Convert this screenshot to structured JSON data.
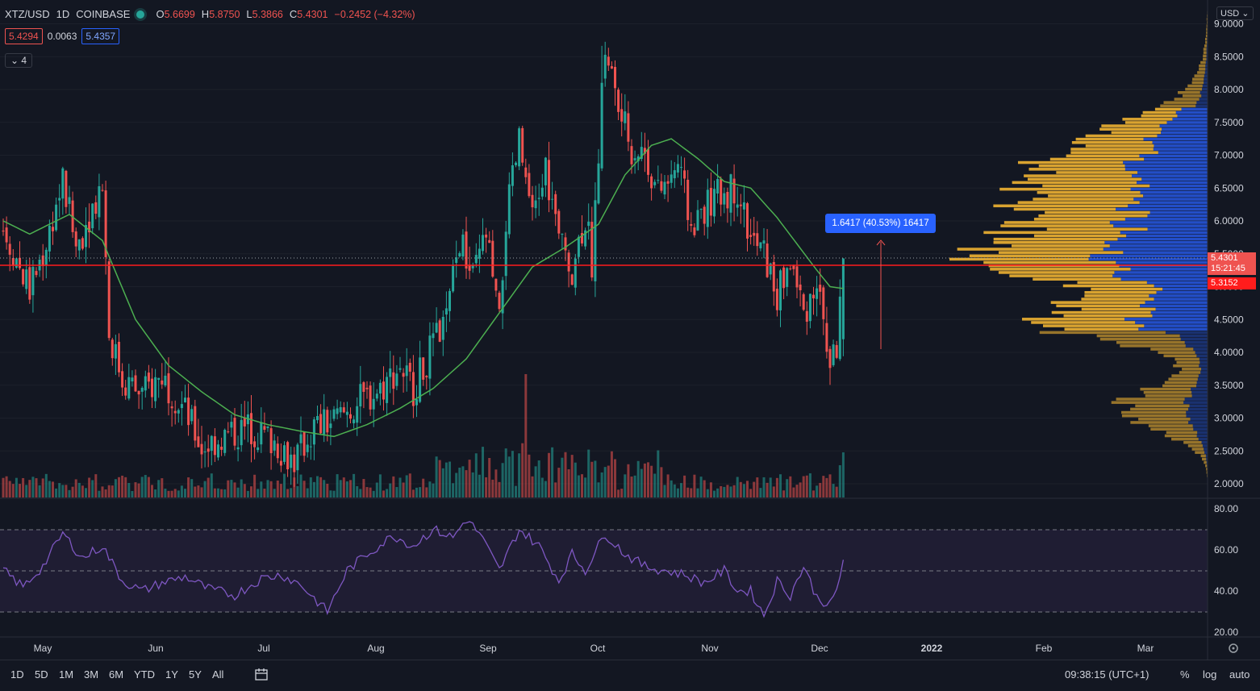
{
  "header": {
    "symbol": "XTZ/USD",
    "interval": "1D",
    "exchange": "COINBASE",
    "open_label": "O",
    "open": "5.6699",
    "high_label": "H",
    "high": "5.8750",
    "low_label": "L",
    "low": "5.3866",
    "close_label": "C",
    "close": "5.4301",
    "change": "−0.2452 (−4.32%)",
    "bid": "5.4294",
    "spread": "0.0063",
    "ask": "5.4357",
    "indicators_collapse": "⌄ 4",
    "currency": "USD ⌄"
  },
  "measure_label": "1.6417 (40.53%) 16417",
  "price_tags": {
    "last": "5.4301",
    "countdown": "15:21:45",
    "level": "5.3152"
  },
  "bottom_bar": {
    "ranges": [
      "1D",
      "5D",
      "1M",
      "3M",
      "6M",
      "YTD",
      "1Y",
      "5Y",
      "All"
    ],
    "time": "09:38:15 (UTC+1)",
    "percent": "%",
    "log": "log",
    "auto": "auto"
  },
  "colors": {
    "background": "#131722",
    "up": "#26a69a",
    "down": "#ef5350",
    "ma": "#4caf50",
    "rsi": "#7e57c2",
    "vp_value_area": "#2962ff",
    "vp_outside": "#f0b232",
    "level_line": "#ff1c1c"
  },
  "chart_data": [
    {
      "type": "candlestick",
      "title": "XTZ/USD 1D COINBASE",
      "ylim": [
        2.0,
        9.0
      ],
      "y_ticks": [
        "9.0000",
        "8.5000",
        "8.0000",
        "7.5000",
        "7.0000",
        "6.5000",
        "6.0000",
        "5.5000",
        "5.0000",
        "4.5000",
        "4.0000",
        "3.5000",
        "3.0000",
        "2.5000",
        "2.0000"
      ],
      "x_ticks": [
        "May",
        "Jun",
        "Jul",
        "Aug",
        "Sep",
        "Oct",
        "Nov",
        "Dec",
        "2022",
        "Feb",
        "Mar"
      ],
      "horizontal_level": 5.3152,
      "last_price": 5.4301,
      "close_path": [
        [
          0,
          5.9
        ],
        [
          8,
          4.95
        ],
        [
          12,
          5.5
        ],
        [
          18,
          6.6
        ],
        [
          22,
          5.6
        ],
        [
          30,
          6.6
        ],
        [
          32,
          4.3
        ],
        [
          36,
          3.6
        ],
        [
          42,
          3.35
        ],
        [
          48,
          3.65
        ],
        [
          55,
          3.1
        ],
        [
          60,
          2.55
        ],
        [
          66,
          2.7
        ],
        [
          74,
          2.85
        ],
        [
          82,
          2.65
        ],
        [
          88,
          2.35
        ],
        [
          94,
          2.85
        ],
        [
          100,
          2.95
        ],
        [
          108,
          3.25
        ],
        [
          114,
          3.45
        ],
        [
          120,
          3.8
        ],
        [
          124,
          3.45
        ],
        [
          130,
          4.1
        ],
        [
          134,
          4.5
        ],
        [
          138,
          5.7
        ],
        [
          142,
          5.1
        ],
        [
          146,
          5.8
        ],
        [
          150,
          4.4
        ],
        [
          152,
          6.0
        ],
        [
          156,
          7.2
        ],
        [
          160,
          5.95
        ],
        [
          164,
          6.8
        ],
        [
          168,
          5.7
        ],
        [
          172,
          5.3
        ],
        [
          176,
          6.1
        ],
        [
          178,
          5.4
        ],
        [
          182,
          8.7
        ],
        [
          186,
          7.7
        ],
        [
          190,
          7.1
        ],
        [
          194,
          7.05
        ],
        [
          198,
          6.4
        ],
        [
          204,
          6.85
        ],
        [
          208,
          5.9
        ],
        [
          212,
          6.2
        ],
        [
          218,
          6.45
        ],
        [
          222,
          6.5
        ],
        [
          226,
          5.7
        ],
        [
          230,
          5.5
        ],
        [
          234,
          4.85
        ],
        [
          238,
          5.4
        ],
        [
          242,
          4.6
        ],
        [
          246,
          5.1
        ],
        [
          250,
          3.8
        ],
        [
          252,
          4.1
        ],
        [
          254,
          5.43
        ]
      ],
      "ma_path": [
        [
          0,
          6.0
        ],
        [
          8,
          5.8
        ],
        [
          20,
          6.1
        ],
        [
          30,
          5.7
        ],
        [
          40,
          4.5
        ],
        [
          50,
          3.8
        ],
        [
          60,
          3.4
        ],
        [
          70,
          3.05
        ],
        [
          80,
          2.9
        ],
        [
          90,
          2.8
        ],
        [
          100,
          2.72
        ],
        [
          110,
          2.9
        ],
        [
          120,
          3.15
        ],
        [
          130,
          3.45
        ],
        [
          140,
          3.9
        ],
        [
          150,
          4.6
        ],
        [
          160,
          5.3
        ],
        [
          170,
          5.6
        ],
        [
          180,
          5.95
        ],
        [
          188,
          6.7
        ],
        [
          196,
          7.15
        ],
        [
          202,
          7.25
        ],
        [
          210,
          6.95
        ],
        [
          218,
          6.6
        ],
        [
          226,
          6.5
        ],
        [
          234,
          6.05
        ],
        [
          240,
          5.65
        ],
        [
          246,
          5.25
        ],
        [
          250,
          5.0
        ],
        [
          254,
          4.97
        ]
      ]
    },
    {
      "type": "bar",
      "title": "Volume",
      "peak_index": 158,
      "peak_relative": 1.0
    },
    {
      "type": "line",
      "title": "RSI",
      "ylim": [
        20,
        80
      ],
      "y_ticks": [
        "80.00",
        "60.00",
        "40.00",
        "20.00"
      ],
      "bands": [
        70,
        50,
        30
      ],
      "rsi_path": [
        [
          0,
          50
        ],
        [
          6,
          42
        ],
        [
          12,
          52
        ],
        [
          18,
          68
        ],
        [
          24,
          56
        ],
        [
          30,
          62
        ],
        [
          36,
          45
        ],
        [
          42,
          40
        ],
        [
          48,
          44
        ],
        [
          55,
          47
        ],
        [
          62,
          41
        ],
        [
          70,
          38
        ],
        [
          78,
          46
        ],
        [
          84,
          48
        ],
        [
          90,
          43
        ],
        [
          98,
          30
        ],
        [
          104,
          50
        ],
        [
          110,
          58
        ],
        [
          118,
          67
        ],
        [
          124,
          62
        ],
        [
          130,
          70
        ],
        [
          136,
          66
        ],
        [
          140,
          75
        ],
        [
          144,
          68
        ],
        [
          150,
          50
        ],
        [
          156,
          70
        ],
        [
          162,
          62
        ],
        [
          168,
          45
        ],
        [
          172,
          58
        ],
        [
          176,
          50
        ],
        [
          182,
          68
        ],
        [
          188,
          58
        ],
        [
          194,
          52
        ],
        [
          200,
          50
        ],
        [
          206,
          48
        ],
        [
          212,
          44
        ],
        [
          218,
          50
        ],
        [
          222,
          40
        ],
        [
          226,
          40
        ],
        [
          230,
          28
        ],
        [
          234,
          45
        ],
        [
          238,
          38
        ],
        [
          242,
          52
        ],
        [
          246,
          37
        ],
        [
          250,
          33
        ],
        [
          252,
          40
        ],
        [
          254,
          55
        ]
      ]
    },
    {
      "type": "volume-profile",
      "title": "Visible range volume profile",
      "price_range": [
        2.1,
        9.2
      ],
      "poc": 5.4,
      "value_area": [
        4.3,
        7.7
      ]
    }
  ]
}
